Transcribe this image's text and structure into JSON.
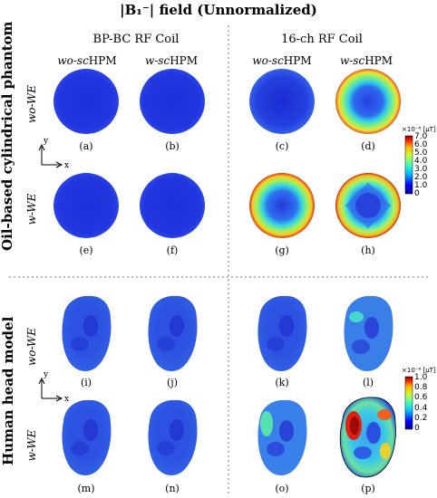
{
  "figure": {
    "title": "|B₁⁻| field (Unnormalized)",
    "coils": [
      "BP-BC RF Coil",
      "16-ch RF Coil"
    ],
    "column_headers": [
      {
        "prefix": "wo-sc",
        "suffix": "HPM"
      },
      {
        "prefix": "w-sc",
        "suffix": "HPM"
      },
      {
        "prefix": "wo-sc",
        "suffix": "HPM"
      },
      {
        "prefix": "w-sc",
        "suffix": "HPM"
      }
    ],
    "side_labels": [
      "Oil-based cylindrical phantom",
      "Human head model"
    ],
    "row_labels": [
      "wo-WE",
      "w-WE",
      "wo-WE",
      "w-WE"
    ],
    "panel_labels": [
      "(a)",
      "(b)",
      "(c)",
      "(d)",
      "(e)",
      "(f)",
      "(g)",
      "(h)",
      "(i)",
      "(j)",
      "(k)",
      "(l)",
      "(m)",
      "(n)",
      "(o)",
      "(p)"
    ],
    "axes": {
      "x": "x",
      "y": "y"
    },
    "colorbar_phantom": {
      "exponent": "×10⁻⁶ [μT]",
      "ticks": [
        "7.0",
        "6.0",
        "5.0",
        "4.0",
        "3.0",
        "2.0",
        "1.0",
        "0"
      ]
    },
    "colorbar_head": {
      "exponent": "×10⁻⁶ [μT]",
      "ticks": [
        "1.0",
        "0.8",
        "0.6",
        "0.4",
        "0.2",
        "0"
      ]
    },
    "colors": {
      "low": "#1a2bd6",
      "mid": "#33e0d0",
      "high": "#e02010",
      "divider": "#777777"
    }
  }
}
